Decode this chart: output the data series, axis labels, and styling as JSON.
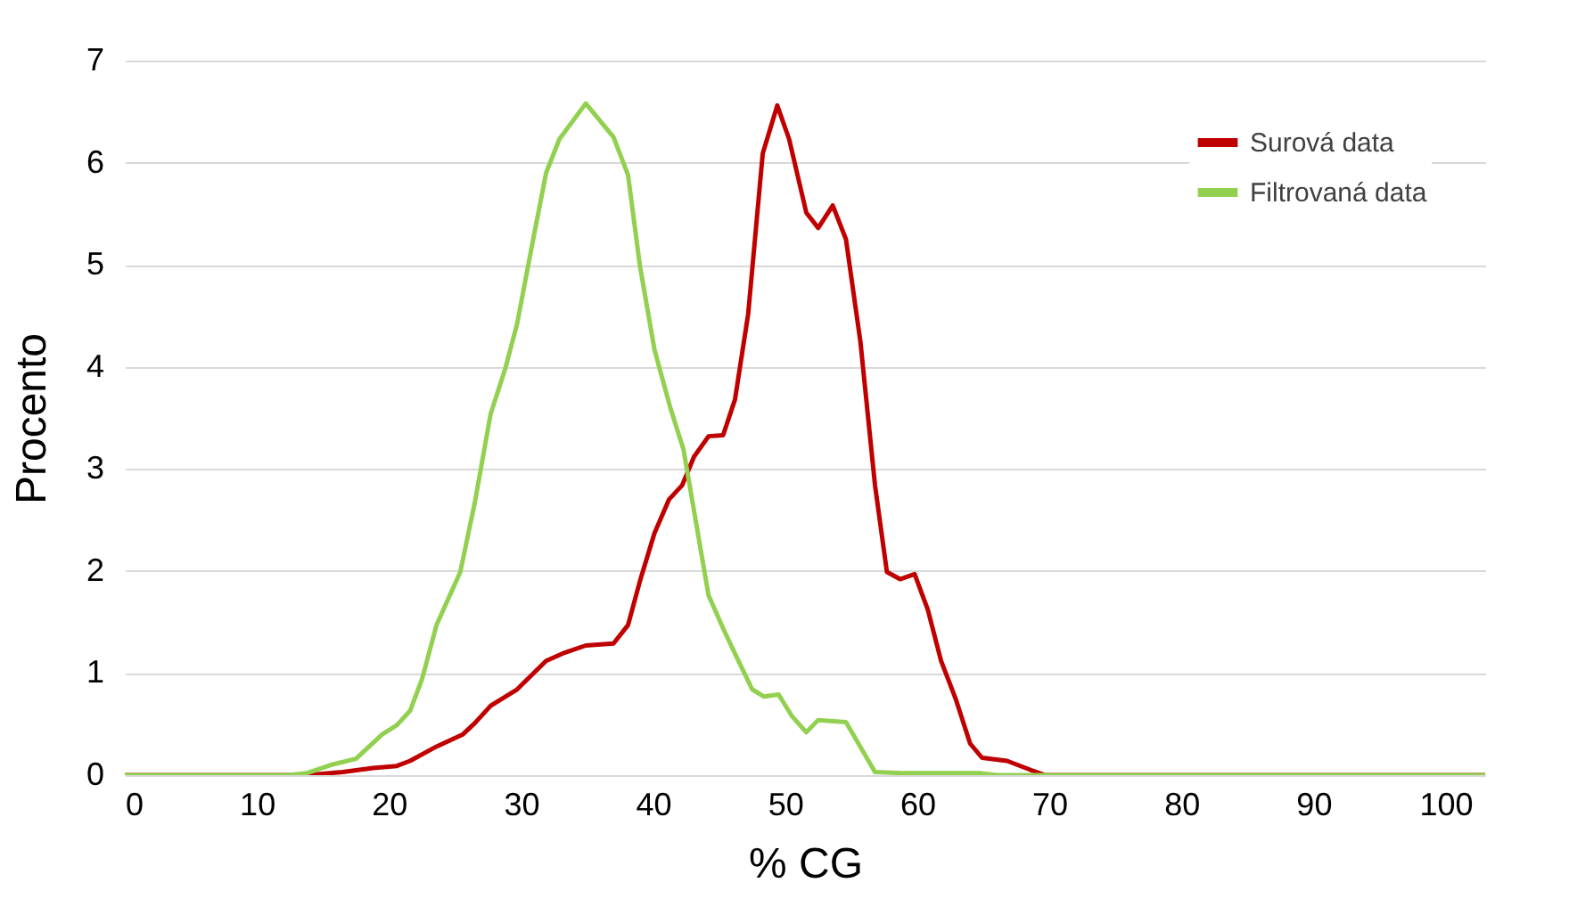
{
  "chart_data": {
    "type": "line",
    "xlabel": "% CG",
    "ylabel": "Procento",
    "xlim": [
      0,
      103
    ],
    "xticks": [
      0,
      10,
      20,
      30,
      40,
      50,
      60,
      70,
      80,
      90,
      100
    ],
    "ylim": [
      0,
      7
    ],
    "yticks": [
      0,
      1,
      2,
      3,
      4,
      5,
      6,
      7
    ],
    "grid": "y",
    "legend": "top right",
    "marker": "none",
    "line_style": "solid",
    "series": [
      {
        "name": "Surová data",
        "color": "#c00000",
        "x": [
          0,
          13.8,
          16.5,
          18.8,
          20.6,
          21.6,
          23.6,
          25.6,
          26.5,
          27.7,
          29.7,
          30.8,
          31.9,
          33.3,
          34.9,
          37,
          38.1,
          39,
          40.1,
          41.2,
          42.2,
          43.1,
          44.2,
          45.3,
          46.2,
          47.2,
          48.3,
          49.4,
          50.3,
          51.6,
          52.5,
          53.6,
          54.6,
          55.7,
          56.8,
          57.7,
          58.7,
          59.8,
          60.8,
          61.8,
          62.9,
          64,
          64.9,
          66.8,
          68.6,
          69.7,
          103
        ],
        "values": [
          0,
          0,
          0.03,
          0.07,
          0.09,
          0.14,
          0.28,
          0.4,
          0.51,
          0.68,
          0.84,
          0.98,
          1.12,
          1.2,
          1.27,
          1.29,
          1.47,
          1.9,
          2.37,
          2.7,
          2.84,
          3.12,
          3.32,
          3.33,
          3.68,
          4.52,
          6.09,
          6.56,
          6.23,
          5.51,
          5.36,
          5.58,
          5.25,
          4.24,
          2.84,
          1.99,
          1.92,
          1.97,
          1.62,
          1.12,
          0.75,
          0.31,
          0.17,
          0.14,
          0.05,
          0,
          0
        ]
      },
      {
        "name": "Filtrovaná data",
        "color": "#92d050",
        "x": [
          0,
          12.4,
          13.8,
          15.6,
          17.5,
          19.5,
          20.6,
          21.6,
          22.5,
          23.6,
          25.4,
          26.5,
          27.7,
          28.8,
          29.7,
          30.8,
          31.9,
          32.9,
          34.9,
          37,
          38.1,
          39,
          40.1,
          41.3,
          42.3,
          44.2,
          45.4,
          46.2,
          47.5,
          48.4,
          49.5,
          50.5,
          51.6,
          52.5,
          54.6,
          56.8,
          58.8,
          64.7,
          66,
          103
        ],
        "values": [
          0,
          0,
          0.02,
          0.1,
          0.16,
          0.4,
          0.49,
          0.63,
          0.94,
          1.47,
          1.99,
          2.67,
          3.54,
          3.98,
          4.42,
          5.17,
          5.9,
          6.23,
          6.58,
          6.25,
          5.88,
          4.99,
          4.17,
          3.6,
          3.19,
          1.76,
          1.41,
          1.19,
          0.84,
          0.77,
          0.79,
          0.58,
          0.42,
          0.54,
          0.52,
          0.03,
          0.02,
          0.02,
          0,
          0
        ]
      }
    ]
  }
}
